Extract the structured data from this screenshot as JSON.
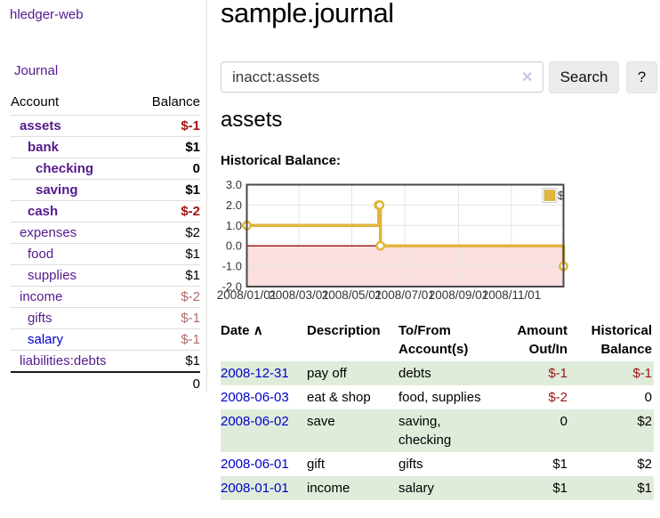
{
  "app": {
    "brand": "hledger-web",
    "nav_journal": "Journal"
  },
  "colors": {
    "link_purple": "#551a8b",
    "link_blue": "#0000cc",
    "negative_strong": "#a01515",
    "negative_muted": "#b36b6b",
    "row_stripe_green": "#dfecda",
    "chart_line_gold": "#e0b53e",
    "chart_negative_fill": "#fbdfdf",
    "chart_zero_line": "#a02020"
  },
  "sidebar": {
    "col_account": "Account",
    "col_balance": "Balance",
    "accounts": [
      {
        "account": "assets",
        "balance": "$-1",
        "depth": 1,
        "bold": true,
        "account_color": "purple",
        "balance_color": "neg"
      },
      {
        "account": "bank",
        "balance": "$1",
        "depth": 2,
        "bold": true,
        "account_color": "purple",
        "balance_color": "default"
      },
      {
        "account": "checking",
        "balance": "0",
        "depth": 3,
        "bold": true,
        "account_color": "purple",
        "balance_color": "default"
      },
      {
        "account": "saving",
        "balance": "$1",
        "depth": 3,
        "bold": true,
        "account_color": "purple",
        "balance_color": "default"
      },
      {
        "account": "cash",
        "balance": "$-2",
        "depth": 2,
        "bold": true,
        "account_color": "purple",
        "balance_color": "neg"
      },
      {
        "account": "expenses",
        "balance": "$2",
        "depth": 1,
        "bold": false,
        "account_color": "purple",
        "balance_color": "default"
      },
      {
        "account": "food",
        "balance": "$1",
        "depth": 2,
        "bold": false,
        "account_color": "purple",
        "balance_color": "default"
      },
      {
        "account": "supplies",
        "balance": "$1",
        "depth": 2,
        "bold": false,
        "account_color": "purple",
        "balance_color": "default"
      },
      {
        "account": "income",
        "balance": "$-2",
        "depth": 1,
        "bold": false,
        "account_color": "purple",
        "balance_color": "negmuted"
      },
      {
        "account": "gifts",
        "balance": "$-1",
        "depth": 2,
        "bold": false,
        "account_color": "purple",
        "balance_color": "negmuted"
      },
      {
        "account": "salary",
        "balance": "$-1",
        "depth": 2,
        "bold": false,
        "account_color": "blue",
        "balance_color": "negmuted"
      },
      {
        "account": "liabilities:debts",
        "balance": "$1",
        "depth": 1,
        "bold": false,
        "account_color": "purple",
        "balance_color": "default"
      }
    ],
    "total": "0"
  },
  "header": {
    "title": "sample.journal"
  },
  "search": {
    "value": "inacct:assets",
    "clear_icon": "✕",
    "button_label": "Search",
    "help_label": "?"
  },
  "account_page": {
    "heading": "assets",
    "chart_title": "Historical Balance:"
  },
  "chart_data": {
    "type": "line",
    "title": "Historical Balance:",
    "step": true,
    "series": [
      {
        "name": "$",
        "points": [
          [
            "2008-01-01",
            1
          ],
          [
            "2008-06-01",
            2
          ],
          [
            "2008-06-02",
            2
          ],
          [
            "2008-06-03",
            0
          ],
          [
            "2008-12-31",
            -1
          ]
        ]
      }
    ],
    "x_range": [
      "2008-01-01",
      "2008-12-31"
    ],
    "x_tick_labels": [
      "2008/01/01",
      "2008/03/01",
      "2008/05/01",
      "2008/07/01",
      "2008/09/01",
      "2008/11/01"
    ],
    "y_ticks": [
      3,
      2,
      1,
      0,
      -1,
      -2
    ],
    "y_tick_labels": [
      "3.0",
      "2.0",
      "1.0",
      "0.0",
      "-1.0",
      "-2.0"
    ],
    "ylim": [
      -2,
      3
    ],
    "legend": {
      "label": "$",
      "position": "top-right"
    },
    "negative_region": true,
    "grid": true
  },
  "register": {
    "sort_icon": "∧",
    "columns": [
      "Date",
      "Description",
      "To/From Account(s)",
      "Amount Out/In",
      "Historical Balance"
    ],
    "rows": [
      {
        "date": "2008-12-31",
        "description": "pay off",
        "accounts": "debts",
        "amount": "$-1",
        "balance": "$-1",
        "amount_negative": true,
        "balance_negative": true,
        "stripe": true
      },
      {
        "date": "2008-06-03",
        "description": "eat & shop",
        "accounts": "food, supplies",
        "amount": "$-2",
        "balance": "0",
        "amount_negative": true,
        "balance_negative": false,
        "stripe": false
      },
      {
        "date": "2008-06-02",
        "description": "save",
        "accounts": "saving, checking",
        "amount": "0",
        "balance": "$2",
        "amount_negative": false,
        "balance_negative": false,
        "stripe": true
      },
      {
        "date": "2008-06-01",
        "description": "gift",
        "accounts": "gifts",
        "amount": "$1",
        "balance": "$2",
        "amount_negative": false,
        "balance_negative": false,
        "stripe": false
      },
      {
        "date": "2008-01-01",
        "description": "income",
        "accounts": "salary",
        "amount": "$1",
        "balance": "$1",
        "amount_negative": false,
        "balance_negative": false,
        "stripe": true
      }
    ]
  }
}
